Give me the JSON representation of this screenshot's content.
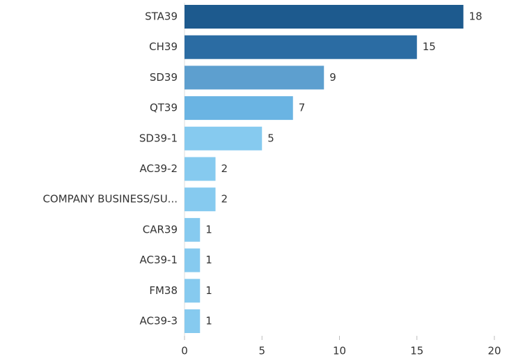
{
  "chart_data": {
    "type": "barh",
    "categories": [
      "STA39",
      "CH39",
      "SD39",
      "QT39",
      "SD39-1",
      "AC39-2",
      "COMPANY BUSINESS/SU...",
      "CAR39",
      "AC39-1",
      "FM38",
      "AC39-3"
    ],
    "values": [
      18,
      15,
      9,
      7,
      5,
      2,
      2,
      1,
      1,
      1,
      1
    ],
    "colors": [
      "#1d5a8e",
      "#2b6ca3",
      "#5d9fcf",
      "#6ab4e3",
      "#86caef",
      "#86caef",
      "#86caef",
      "#86caef",
      "#86caef",
      "#86caef",
      "#86caef"
    ],
    "xlim": [
      0,
      20
    ],
    "xticks": [
      0,
      5,
      10,
      15,
      20
    ]
  }
}
